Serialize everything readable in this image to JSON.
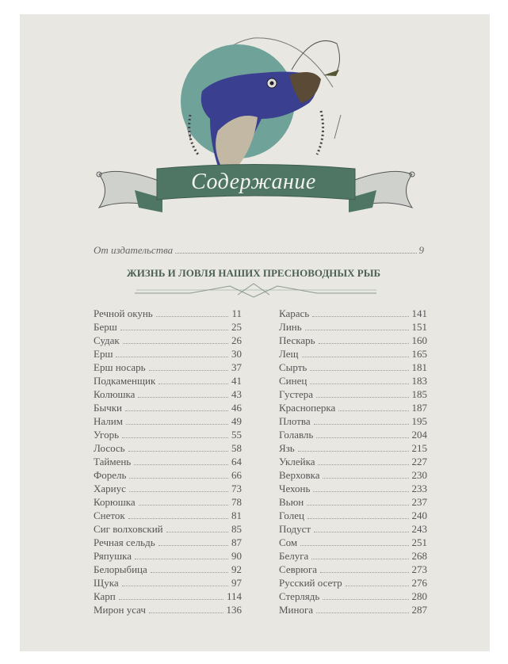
{
  "heading": "Содержание",
  "publisher_note": {
    "label": "От издательства",
    "page": "9"
  },
  "section_title": "ЖИЗНЬ И ЛОВЛЯ НАШИХ ПРЕСНОВОДНЫХ РЫБ",
  "colors": {
    "banner": "#4f7665",
    "circle": "#6fa39a",
    "fish": "#3a3f8f",
    "page": "#e8e7e2"
  },
  "entries_left": [
    {
      "title": "Речной окунь",
      "page": "11"
    },
    {
      "title": "Берш",
      "page": "25"
    },
    {
      "title": "Судак",
      "page": "26"
    },
    {
      "title": "Ерш",
      "page": "30"
    },
    {
      "title": "Ерш носарь",
      "page": "37"
    },
    {
      "title": "Подкаменщик",
      "page": "41"
    },
    {
      "title": "Колюшка",
      "page": "43"
    },
    {
      "title": "Бычки",
      "page": "46"
    },
    {
      "title": "Налим",
      "page": "49"
    },
    {
      "title": "Угорь",
      "page": "55"
    },
    {
      "title": "Лосось",
      "page": "58"
    },
    {
      "title": "Таймень",
      "page": "64"
    },
    {
      "title": "Форель",
      "page": "66"
    },
    {
      "title": "Хариус",
      "page": "73"
    },
    {
      "title": "Корюшка",
      "page": "78"
    },
    {
      "title": "Снеток",
      "page": "81"
    },
    {
      "title": "Сиг волховский",
      "page": "85"
    },
    {
      "title": "Речная сельдь",
      "page": "87"
    },
    {
      "title": "Ряпушка",
      "page": "90"
    },
    {
      "title": "Белорыбица",
      "page": "92"
    },
    {
      "title": "Щука",
      "page": "97"
    },
    {
      "title": "Карп",
      "page": "114"
    },
    {
      "title": "Мирон усач",
      "page": "136"
    }
  ],
  "entries_right": [
    {
      "title": "Карась",
      "page": "141"
    },
    {
      "title": "Линь",
      "page": "151"
    },
    {
      "title": "Пескарь",
      "page": "160"
    },
    {
      "title": "Лещ",
      "page": "165"
    },
    {
      "title": "Сырть",
      "page": "181"
    },
    {
      "title": "Синец",
      "page": "183"
    },
    {
      "title": "Густера",
      "page": "185"
    },
    {
      "title": "Красноперка",
      "page": "187"
    },
    {
      "title": "Плотва",
      "page": "195"
    },
    {
      "title": "Голавль",
      "page": "204"
    },
    {
      "title": "Язь",
      "page": "215"
    },
    {
      "title": "Уклейка",
      "page": "227"
    },
    {
      "title": "Верховка",
      "page": "230"
    },
    {
      "title": "Чехонь",
      "page": "233"
    },
    {
      "title": "Вьюн",
      "page": "237"
    },
    {
      "title": "Голец",
      "page": "240"
    },
    {
      "title": "Подуст",
      "page": "243"
    },
    {
      "title": "Сом",
      "page": "251"
    },
    {
      "title": "Белуга",
      "page": "268"
    },
    {
      "title": "Севрюга",
      "page": "273"
    },
    {
      "title": "Русский осетр",
      "page": "276"
    },
    {
      "title": "Стерлядь",
      "page": "280"
    },
    {
      "title": "Минога",
      "page": "287"
    }
  ]
}
